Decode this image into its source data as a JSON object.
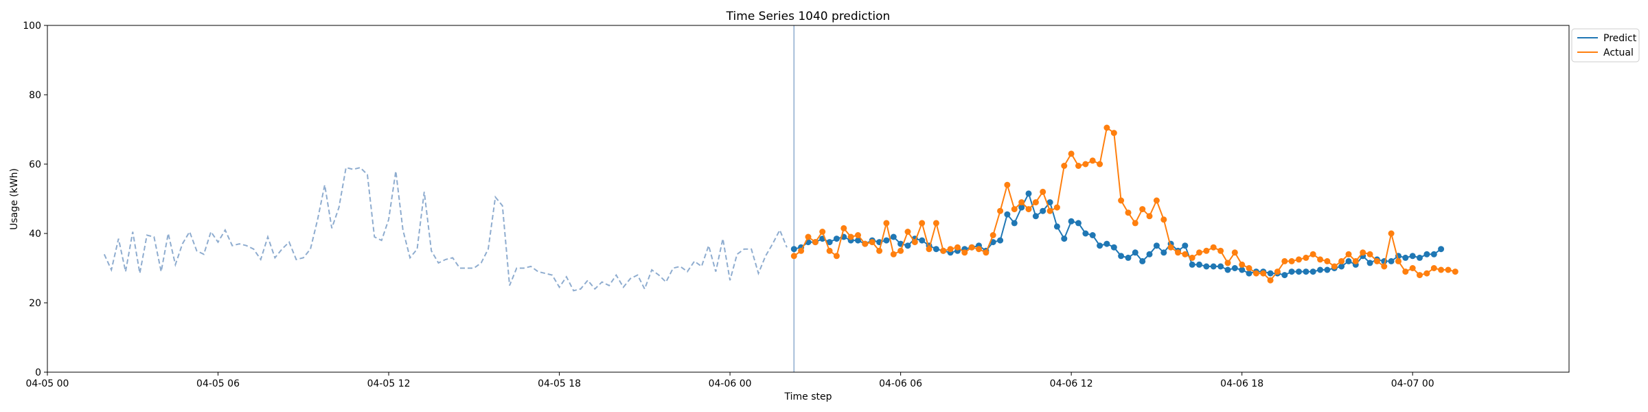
{
  "chart_data": {
    "type": "line",
    "title": "Time Series 1040 prediction",
    "xlabel": "Time step",
    "ylabel": "Usage (kWh)",
    "ylim": [
      0,
      100
    ],
    "yticks": [
      0,
      20,
      40,
      60,
      80,
      100
    ],
    "xlim": [
      "04-05 00:00",
      "04-07 05:30"
    ],
    "xticks": [
      {
        "t": "04-05 00:00",
        "label": "04-05 00"
      },
      {
        "t": "04-05 06:00",
        "label": "04-05 06"
      },
      {
        "t": "04-05 12:00",
        "label": "04-05 12"
      },
      {
        "t": "04-05 18:00",
        "label": "04-05 18"
      },
      {
        "t": "04-06 00:00",
        "label": "04-06 00"
      },
      {
        "t": "04-06 06:00",
        "label": "04-06 06"
      },
      {
        "t": "04-06 12:00",
        "label": "04-06 12"
      },
      {
        "t": "04-06 18:00",
        "label": "04-06 18"
      },
      {
        "t": "04-07 00:00",
        "label": "04-07 00"
      }
    ],
    "forecast_start": "04-06 02:15",
    "legend": {
      "placement": "top-right",
      "entries": [
        "Predict",
        "Actual"
      ]
    },
    "colors": {
      "history": "#8eaccf",
      "predict": "#1f77b4",
      "actual": "#ff7f0e",
      "divider": "#8eaccf"
    },
    "series": [
      {
        "name": "",
        "style": "dashed",
        "start": "04-05 02:00",
        "step_minutes": 15,
        "values": [
          34,
          29.5,
          38.5,
          29,
          40.5,
          28.5,
          39.5,
          39,
          29,
          40,
          31,
          37,
          40.5,
          35,
          34,
          40.5,
          37.5,
          41,
          36.5,
          37,
          36.5,
          35.5,
          32.5,
          39,
          33,
          35.5,
          37.5,
          32.5,
          33,
          35.5,
          44,
          54,
          41.5,
          47.5,
          59,
          58.5,
          59,
          57,
          39,
          38,
          44,
          58,
          41,
          33,
          35.5,
          52,
          35,
          31.5,
          32.5,
          33,
          30,
          30,
          30,
          31.5,
          35.5,
          50.5,
          48,
          25,
          30,
          30,
          30.5,
          29,
          28.5,
          28,
          24.5,
          27.5,
          23.5,
          24,
          26.5,
          24,
          26,
          25,
          28,
          24.5,
          27,
          28,
          24,
          29.5,
          28,
          26,
          30,
          30.5,
          29,
          32,
          30.5,
          36.5,
          29,
          38.5,
          26.5,
          34,
          35.5,
          35.5,
          28.5,
          33.5,
          37,
          41,
          36
        ]
      },
      {
        "name": "Predict",
        "style": "solid-markers",
        "start": "04-06 02:15",
        "step_minutes": 15,
        "values": [
          35.5,
          36,
          37.5,
          37.5,
          38.5,
          37.5,
          38.5,
          39,
          38,
          38,
          37,
          38,
          37.5,
          38,
          39,
          37,
          36.5,
          38.5,
          38,
          36.5,
          35.5,
          35,
          34.5,
          35,
          35.5,
          36,
          36.5,
          35,
          37.5,
          38,
          45.5,
          43,
          47.5,
          51.5,
          45,
          46.5,
          49,
          42,
          38.5,
          43.5,
          43,
          40,
          39.5,
          36.5,
          37,
          36,
          33.5,
          33,
          34.5,
          32,
          34,
          36.5,
          34.5,
          37,
          35,
          36.5,
          31,
          31,
          30.5,
          30.5,
          30.5,
          29.5,
          30,
          29.5,
          28.5,
          29,
          29,
          28.5,
          28.5,
          28,
          29,
          29,
          29,
          29,
          29.5,
          29.5,
          30,
          30.5,
          32,
          31,
          33.5,
          31.5,
          32.5,
          32,
          32,
          33.5,
          33,
          33.5,
          33,
          34,
          34,
          35.5
        ]
      },
      {
        "name": "Actual",
        "style": "solid-markers",
        "start": "04-06 02:15",
        "step_minutes": 15,
        "values": [
          33.5,
          35,
          39,
          37.5,
          40.5,
          35,
          33.5,
          41.5,
          39,
          39.5,
          37,
          37.5,
          35,
          43,
          34,
          35,
          40.5,
          37.5,
          43,
          35.5,
          43,
          35,
          35.5,
          36,
          34.5,
          36,
          35.5,
          34.5,
          39.5,
          46.5,
          54,
          47,
          49,
          47,
          49,
          52,
          46.5,
          47.5,
          59.5,
          63,
          59.5,
          60,
          61,
          60,
          70.5,
          69,
          49.5,
          46,
          43,
          47,
          45,
          49.5,
          44,
          36,
          34.5,
          34,
          33,
          34.5,
          35,
          36,
          35,
          31.5,
          34.5,
          31,
          30,
          28.5,
          28.5,
          26.5,
          29,
          32,
          32,
          32.5,
          33,
          34,
          32.5,
          32,
          30.5,
          32,
          34,
          32,
          34.5,
          34,
          32,
          30.5,
          40,
          32,
          29,
          30,
          28,
          28.5,
          30,
          29.5,
          29.5,
          29
        ]
      }
    ]
  }
}
